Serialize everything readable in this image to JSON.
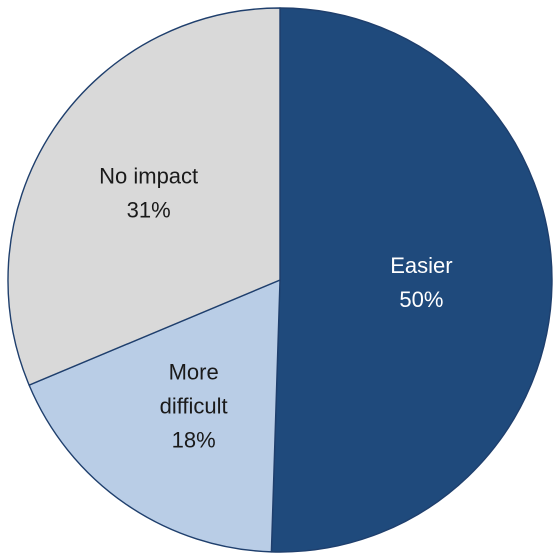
{
  "chart_data": {
    "type": "pie",
    "title": "",
    "slices": [
      {
        "name": "Easier",
        "value": 50,
        "label_pct": "50%",
        "color": "#1f4a7c",
        "text_color": "#ffffff"
      },
      {
        "name": "More difficult",
        "value": 18,
        "label_pct": "18%",
        "color": "#b9cde6",
        "text_color": "#1a1a1a"
      },
      {
        "name": "No impact",
        "value": 31,
        "label_pct": "31%",
        "color": "#d9d9d9",
        "text_color": "#1a1a1a"
      }
    ],
    "start_angle": "12 o'clock",
    "direction": "clockwise",
    "legend": "none"
  }
}
